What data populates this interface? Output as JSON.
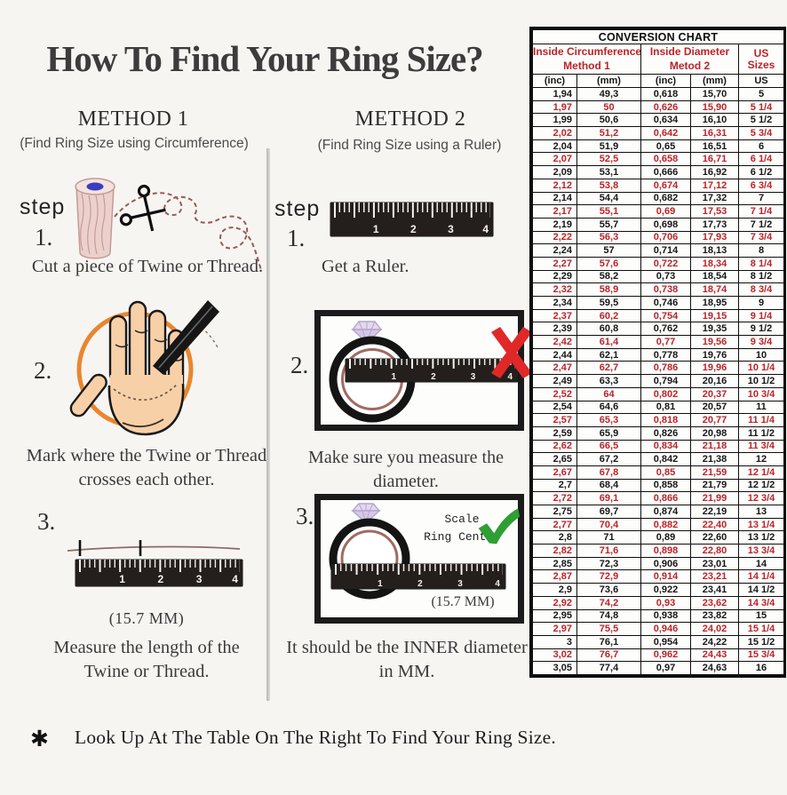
{
  "page_title": "How To Find Your Ring Size?",
  "footnote": {
    "symbol": "✱",
    "text": "Look Up At The Table On The Right To Find Your Ring Size."
  },
  "ruler": {
    "numbers": [
      "1",
      "2",
      "3",
      "4"
    ]
  },
  "methods": [
    {
      "name": "METHOD 1",
      "subtitle": "(Find Ring Size using Circumference)",
      "step_label": "step",
      "steps": [
        {
          "num": "1.",
          "text": "Cut a piece of Twine or Thread."
        },
        {
          "num": "2.",
          "text": "Mark where the Twine or Thread crosses each other."
        },
        {
          "num": "3.",
          "text": "Measure the length of the Twine or Thread.",
          "measurement": "(15.7 MM)"
        }
      ]
    },
    {
      "name": "METHOD 2",
      "subtitle": "(Find Ring Size using a Ruler)",
      "step_label": "step",
      "steps": [
        {
          "num": "1.",
          "text": "Get a Ruler."
        },
        {
          "num": "2.",
          "text": "Make sure you measure the diameter."
        },
        {
          "num": "3.",
          "text": "It should be the INNER diameter in MM.",
          "measurement": "(15.7 MM)",
          "scale_note_line1": "Scale",
          "scale_note_line2": "Ring Center"
        }
      ]
    }
  ],
  "conversion_chart": {
    "title": "CONVERSION CHART",
    "group_headers": [
      {
        "line1": "Inside Circumference",
        "line2": "Method 1"
      },
      {
        "line1": "Inside Diameter",
        "line2": "Metod 2"
      },
      {
        "label": "US Sizes"
      }
    ],
    "sub_headers": [
      "(inc)",
      "(mm)",
      "(inc)",
      "(mm)",
      "US"
    ],
    "rows": [
      [
        "1,94",
        "49,3",
        "0,618",
        "15,70",
        "5"
      ],
      [
        "1,97",
        "50",
        "0,626",
        "15,90",
        "5 1/4"
      ],
      [
        "1,99",
        "50,6",
        "0,634",
        "16,10",
        "5 1/2"
      ],
      [
        "2,02",
        "51,2",
        "0,642",
        "16,31",
        "5 3/4"
      ],
      [
        "2,04",
        "51,9",
        "0,65",
        "16,51",
        "6"
      ],
      [
        "2,07",
        "52,5",
        "0,658",
        "16,71",
        "6 1/4"
      ],
      [
        "2,09",
        "53,1",
        "0,666",
        "16,92",
        "6 1/2"
      ],
      [
        "2,12",
        "53,8",
        "0,674",
        "17,12",
        "6 3/4"
      ],
      [
        "2,14",
        "54,4",
        "0,682",
        "17,32",
        "7"
      ],
      [
        "2,17",
        "55,1",
        "0,69",
        "17,53",
        "7 1/4"
      ],
      [
        "2,19",
        "55,7",
        "0,698",
        "17,73",
        "7 1/2"
      ],
      [
        "2,22",
        "56,3",
        "0,706",
        "17,93",
        "7 3/4"
      ],
      [
        "2,24",
        "57",
        "0,714",
        "18,13",
        "8"
      ],
      [
        "2,27",
        "57,6",
        "0,722",
        "18,34",
        "8 1/4"
      ],
      [
        "2,29",
        "58,2",
        "0,73",
        "18,54",
        "8 1/2"
      ],
      [
        "2,32",
        "58,9",
        "0,738",
        "18,74",
        "8 3/4"
      ],
      [
        "2,34",
        "59,5",
        "0,746",
        "18,95",
        "9"
      ],
      [
        "2,37",
        "60,2",
        "0,754",
        "19,15",
        "9 1/4"
      ],
      [
        "2,39",
        "60,8",
        "0,762",
        "19,35",
        "9 1/2"
      ],
      [
        "2,42",
        "61,4",
        "0,77",
        "19,56",
        "9 3/4"
      ],
      [
        "2,44",
        "62,1",
        "0,778",
        "19,76",
        "10"
      ],
      [
        "2,47",
        "62,7",
        "0,786",
        "19,96",
        "10 1/4"
      ],
      [
        "2,49",
        "63,3",
        "0,794",
        "20,16",
        "10 1/2"
      ],
      [
        "2,52",
        "64",
        "0,802",
        "20,37",
        "10 3/4"
      ],
      [
        "2,54",
        "64,6",
        "0,81",
        "20,57",
        "11"
      ],
      [
        "2,57",
        "65,3",
        "0,818",
        "20,77",
        "11 1/4"
      ],
      [
        "2,59",
        "65,9",
        "0,826",
        "20,98",
        "11 1/2"
      ],
      [
        "2,62",
        "66,5",
        "0,834",
        "21,18",
        "11 3/4"
      ],
      [
        "2,65",
        "67,2",
        "0,842",
        "21,38",
        "12"
      ],
      [
        "2,67",
        "67,8",
        "0,85",
        "21,59",
        "12 1/4"
      ],
      [
        "2,7",
        "68,4",
        "0,858",
        "21,79",
        "12 1/2"
      ],
      [
        "2,72",
        "69,1",
        "0,866",
        "21,99",
        "12 3/4"
      ],
      [
        "2,75",
        "69,7",
        "0,874",
        "22,19",
        "13"
      ],
      [
        "2,77",
        "70,4",
        "0,882",
        "22,40",
        "13 1/4"
      ],
      [
        "2,8",
        "71",
        "0,89",
        "22,60",
        "13 1/2"
      ],
      [
        "2,82",
        "71,6",
        "0,898",
        "22,80",
        "13 3/4"
      ],
      [
        "2,85",
        "72,3",
        "0,906",
        "23,01",
        "14"
      ],
      [
        "2,87",
        "72,9",
        "0,914",
        "23,21",
        "14 1/4"
      ],
      [
        "2,9",
        "73,6",
        "0,922",
        "23,41",
        "14 1/2"
      ],
      [
        "2,92",
        "74,2",
        "0,93",
        "23,62",
        "14 3/4"
      ],
      [
        "2,95",
        "74,8",
        "0,938",
        "23,82",
        "15"
      ],
      [
        "2,97",
        "75,5",
        "0,946",
        "24,02",
        "15 1/4"
      ],
      [
        "3",
        "76,1",
        "0,954",
        "24,22",
        "15 1/2"
      ],
      [
        "3,02",
        "76,7",
        "0,962",
        "24,43",
        "15 3/4"
      ],
      [
        "3,05",
        "77,4",
        "0,97",
        "24,63",
        "16"
      ]
    ]
  },
  "colors": {
    "table_red": "#bb2328",
    "highlight_orange": "#e8872e",
    "check_green": "#2f9e33",
    "x_red": "#e02828",
    "ring_inner": "#a26a60",
    "gem_purple": "#d6c8e8"
  }
}
